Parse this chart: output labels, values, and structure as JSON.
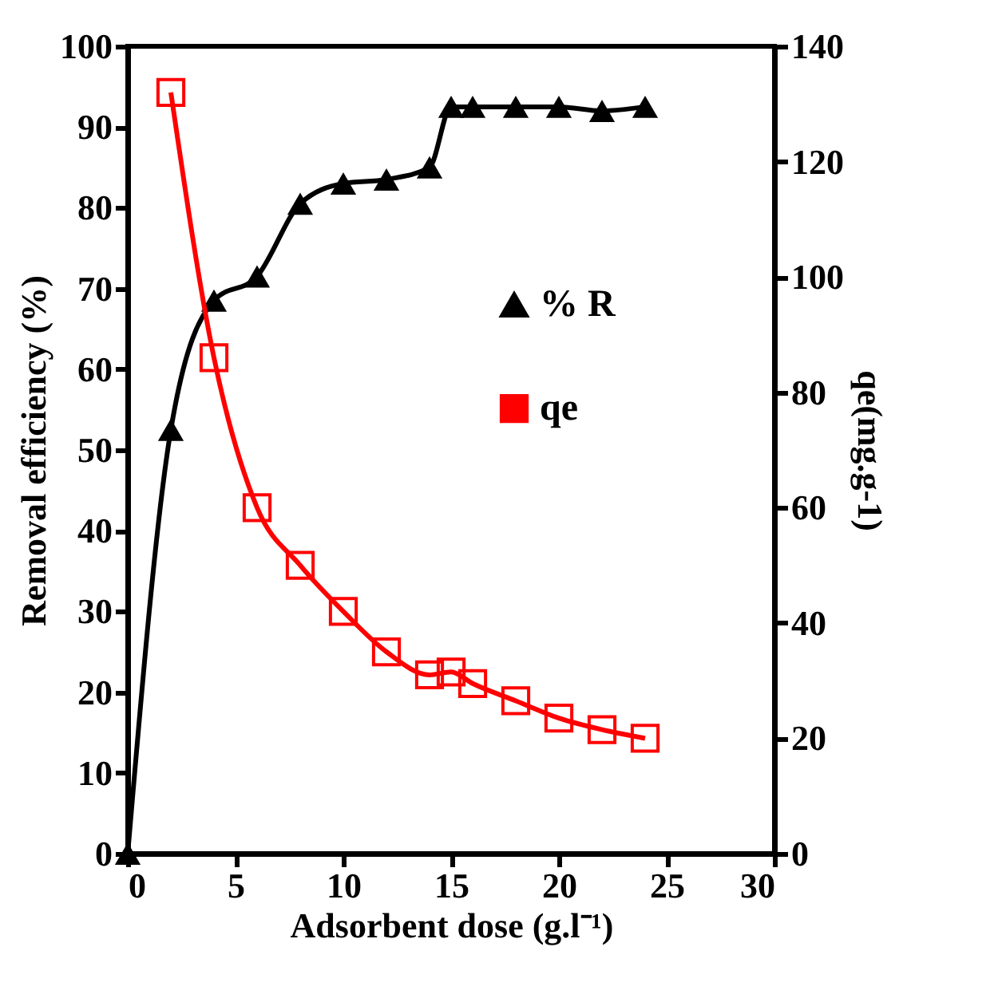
{
  "chart_data": {
    "type": "line",
    "xlabel": "Adsorbent dose (g.l⁻¹)",
    "ylabel": "Removal efficiency  (%)",
    "y2label": "qe(mg.g-1)",
    "xlim": [
      0,
      30
    ],
    "xticks": [
      0,
      5,
      10,
      15,
      20,
      25,
      30
    ],
    "ylim": [
      0,
      100
    ],
    "yticks": [
      0,
      10,
      20,
      30,
      40,
      50,
      60,
      70,
      80,
      90,
      100
    ],
    "y2lim": [
      0,
      140
    ],
    "y2ticks": [
      0,
      20,
      40,
      60,
      80,
      100,
      120,
      140
    ],
    "grid": false,
    "legend": "right",
    "line_style": "solid",
    "series": [
      {
        "name": "% R",
        "color": "#000000",
        "marker": "triangle",
        "x": [
          0,
          2,
          4,
          6,
          8,
          10,
          12,
          14,
          15,
          16,
          18,
          20,
          22,
          24
        ],
        "values": [
          0,
          52.5,
          68.5,
          71.5,
          80.5,
          83,
          83.5,
          85,
          92.5,
          92.5,
          92.5,
          92.5,
          92,
          92.5
        ]
      },
      {
        "name": "qe",
        "color": "#ff0000",
        "marker": "square",
        "axis": "y2",
        "x": [
          2,
          4,
          6,
          8,
          10,
          12,
          14,
          15,
          16,
          18,
          20,
          22,
          24
        ],
        "values": [
          132,
          86,
          60,
          50,
          42,
          35,
          31,
          31.5,
          29.5,
          26.5,
          23.5,
          21.5,
          20
        ]
      }
    ]
  }
}
